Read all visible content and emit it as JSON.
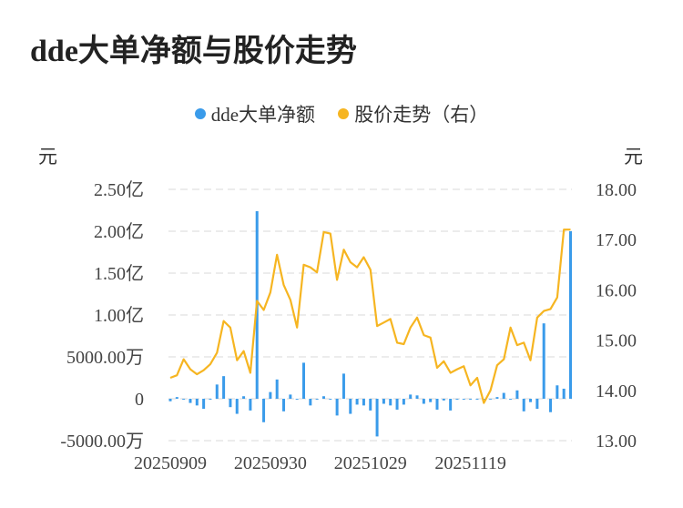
{
  "title": "dde大单净额与股价走势",
  "legend": [
    {
      "label": "dde大单净额",
      "color": "#3a9bea"
    },
    {
      "label": "股价走势（右）",
      "color": "#f6b521"
    }
  ],
  "units": {
    "left": "元",
    "right": "元"
  },
  "chart_data": {
    "type": "bar+line",
    "title": "dde大单净额与股价走势",
    "left_axis": {
      "ticks": [
        -50000000,
        0,
        50000000,
        100000000,
        150000000,
        200000000,
        250000000
      ],
      "tick_labels": [
        "-5000.00万",
        "0",
        "5000.00万",
        "1.00亿",
        "1.50亿",
        "2.00亿",
        "2.50亿"
      ],
      "ylim": [
        -50000000,
        250000000
      ]
    },
    "right_axis": {
      "ticks": [
        13,
        14,
        15,
        16,
        17,
        18
      ],
      "tick_labels": [
        "13.00",
        "14.00",
        "15.00",
        "16.00",
        "17.00",
        "18.00"
      ],
      "ylim": [
        13,
        18
      ]
    },
    "x_tick_labels": [
      {
        "index": 0,
        "label": "20250909"
      },
      {
        "index": 15,
        "label": "20250930"
      },
      {
        "index": 30,
        "label": "20251029"
      },
      {
        "index": 45,
        "label": "20251119"
      }
    ],
    "grid": true,
    "legend_position": "top",
    "series": [
      {
        "name": "dde大单净额",
        "type": "bar",
        "axis": "left",
        "color": "#3a9bea",
        "values": [
          -3000000,
          2000000,
          -1000000,
          -5000000,
          -8000000,
          -12000000,
          -1000000,
          17000000,
          27000000,
          -10000000,
          -18000000,
          3000000,
          -14000000,
          224000000,
          -28000000,
          8000000,
          23000000,
          -15000000,
          5000000,
          -1000000,
          43000000,
          -8000000,
          -1000000,
          3000000,
          -1000000,
          -20000000,
          30000000,
          -18000000,
          -7000000,
          -8000000,
          -14000000,
          -45000000,
          -6000000,
          -8000000,
          -13000000,
          -7000000,
          5000000,
          4000000,
          -6000000,
          -4000000,
          -13000000,
          -2000000,
          -14000000,
          -1000000,
          -1000000,
          -1000000,
          -1000000,
          -1000000,
          0,
          2000000,
          7000000,
          -1000000,
          10000000,
          -15000000,
          -4000000,
          -12000000,
          90000000,
          -16000000,
          16000000,
          12000000,
          200000000
        ]
      },
      {
        "name": "股价走势（右）",
        "type": "line",
        "axis": "right",
        "color": "#f6b521",
        "values": [
          14.25,
          14.3,
          14.62,
          14.42,
          14.32,
          14.4,
          14.52,
          14.75,
          15.38,
          15.25,
          14.6,
          14.78,
          14.35,
          15.78,
          15.6,
          15.95,
          16.7,
          16.1,
          15.8,
          15.25,
          16.5,
          16.45,
          16.35,
          17.15,
          17.12,
          16.2,
          16.8,
          16.55,
          16.45,
          16.65,
          16.4,
          15.28,
          15.35,
          15.42,
          14.95,
          14.92,
          15.25,
          15.45,
          15.1,
          15.05,
          14.45,
          14.58,
          14.35,
          14.42,
          14.48,
          14.1,
          14.25,
          13.75,
          14.0,
          14.5,
          14.62,
          15.25,
          14.9,
          14.95,
          14.6,
          15.45,
          15.58,
          15.62,
          15.85,
          17.2,
          17.2
        ]
      }
    ]
  }
}
